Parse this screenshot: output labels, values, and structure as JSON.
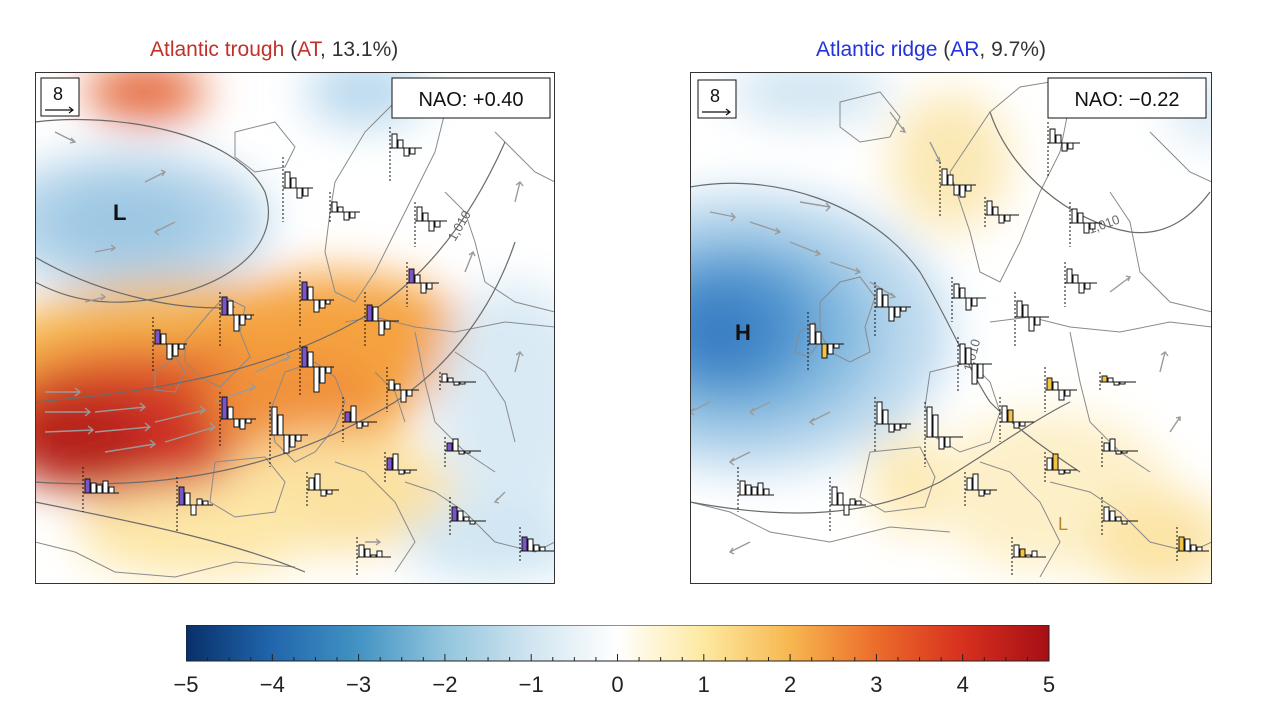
{
  "panels": [
    {
      "id": "left",
      "title_name": "Atlantic trough",
      "title_open": " (",
      "title_code": "AT",
      "title_pct": ", 13.1%)",
      "title_color": "#c0312b",
      "scale_label": "8",
      "nao_label": "NAO: +0.40",
      "pressure_center": "L",
      "isobar_label": "1,010"
    },
    {
      "id": "right",
      "title_name": "Atlantic ridge",
      "title_open": " (",
      "title_code": "AR",
      "title_pct": ", 9.7%)",
      "title_color": "#2233dd",
      "scale_label": "8",
      "nao_label": "NAO: −0.22",
      "pressure_center": "H",
      "pressure_center_2": "L",
      "isobar_label_1": "1,010",
      "isobar_label_2": "1,010"
    }
  ],
  "colorbar": {
    "ticks": [
      "−5",
      "−4",
      "−3",
      "−2",
      "−1",
      "0",
      "1",
      "2",
      "3",
      "4",
      "5"
    ],
    "min": -5,
    "max": 5,
    "colors": [
      "#08306b",
      "#2166ac",
      "#4393c3",
      "#92c5de",
      "#d1e5f0",
      "#ffffff",
      "#fde9a0",
      "#f7b750",
      "#ec6c2a",
      "#d7301f",
      "#a50f15"
    ]
  }
}
